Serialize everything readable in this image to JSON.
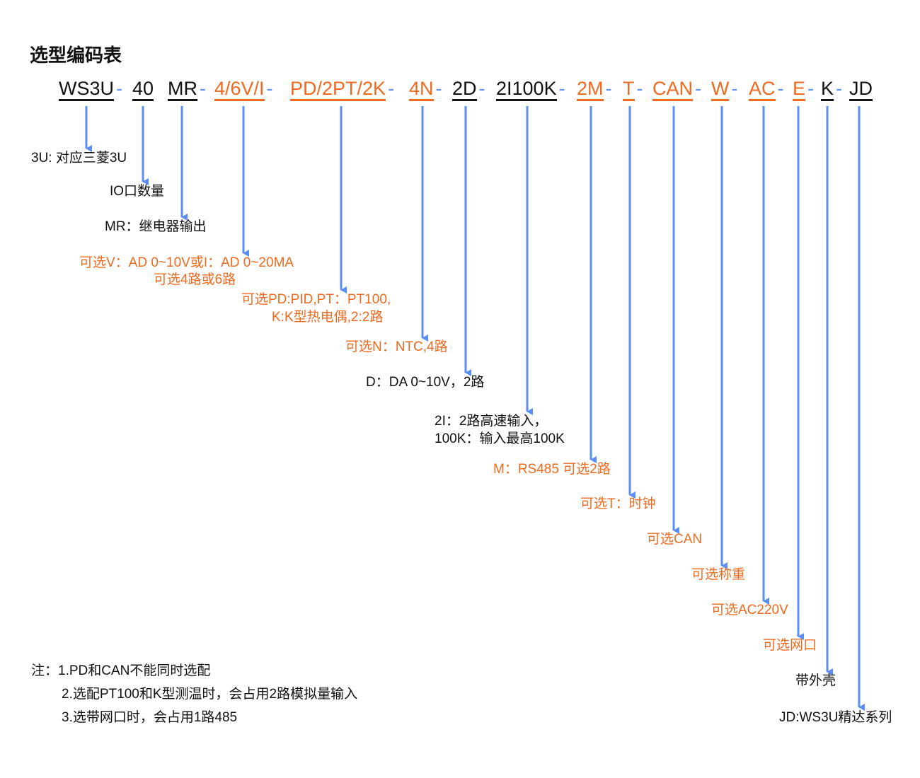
{
  "title": "选型编码表",
  "colors": {
    "black": "#111111",
    "option": "#ef6a1f",
    "arrow": "#5b8ef5"
  },
  "codes": [
    {
      "text": "WS3U",
      "dash": "-",
      "color": "black"
    },
    {
      "text": "40",
      "dash": "",
      "color": "black"
    },
    {
      "text": "MR",
      "dash": "-",
      "color": "black"
    },
    {
      "text": "4/6V/I",
      "dash": "-",
      "color": "orange"
    },
    {
      "text": "PD/2PT/2K",
      "dash": "-",
      "color": "orange"
    },
    {
      "text": "4N",
      "dash": "-",
      "color": "orange"
    },
    {
      "text": "2D",
      "dash": "-",
      "color": "black"
    },
    {
      "text": "2I100K",
      "dash": "-",
      "color": "black"
    },
    {
      "text": "2M",
      "dash": "-",
      "color": "orange"
    },
    {
      "text": "T",
      "dash": "-",
      "color": "orange"
    },
    {
      "text": "CAN",
      "dash": "-",
      "color": "orange"
    },
    {
      "text": "W",
      "dash": "-",
      "color": "orange"
    },
    {
      "text": "AC",
      "dash": "-",
      "color": "orange"
    },
    {
      "text": "E",
      "dash": "-",
      "color": "orange"
    },
    {
      "text": "K",
      "dash": "-",
      "color": "black"
    },
    {
      "text": "JD",
      "dash": "",
      "color": "black"
    }
  ],
  "labels": [
    {
      "lines": [
        "3U: 对应三菱3U"
      ]
    },
    {
      "lines": [
        "IO口数量"
      ]
    },
    {
      "lines": [
        "MR：继电器输出"
      ]
    },
    {
      "lines": [
        "可选V：AD 0~10V或I：AD 0~20MA",
        "可选4路或6路"
      ]
    },
    {
      "lines": [
        "可选PD:PID,PT：PT100,",
        "K:K型热电偶,2:2路"
      ]
    },
    {
      "lines": [
        "可选N：NTC,4路"
      ]
    },
    {
      "lines": [
        "D：DA 0~10V，2路"
      ]
    },
    {
      "lines": [
        "2I：2路高速输入，",
        "100K：输入最高100K"
      ]
    },
    {
      "lines": [
        "M：RS485 可选2路"
      ]
    },
    {
      "lines": [
        "可选T：时钟"
      ]
    },
    {
      "lines": [
        "可选CAN"
      ]
    },
    {
      "lines": [
        "可选称重"
      ]
    },
    {
      "lines": [
        "可选AC220V"
      ]
    },
    {
      "lines": [
        "可选网口"
      ]
    },
    {
      "lines": [
        "带外壳"
      ]
    },
    {
      "lines": [
        "JD:WS3U精达系列"
      ]
    }
  ],
  "notes": [
    "注：1.PD和CAN不能同时选配",
    "2.选配PT100和K型测温时，会占用2路模拟量输入",
    "3.选带网口时，会占用1路485"
  ]
}
